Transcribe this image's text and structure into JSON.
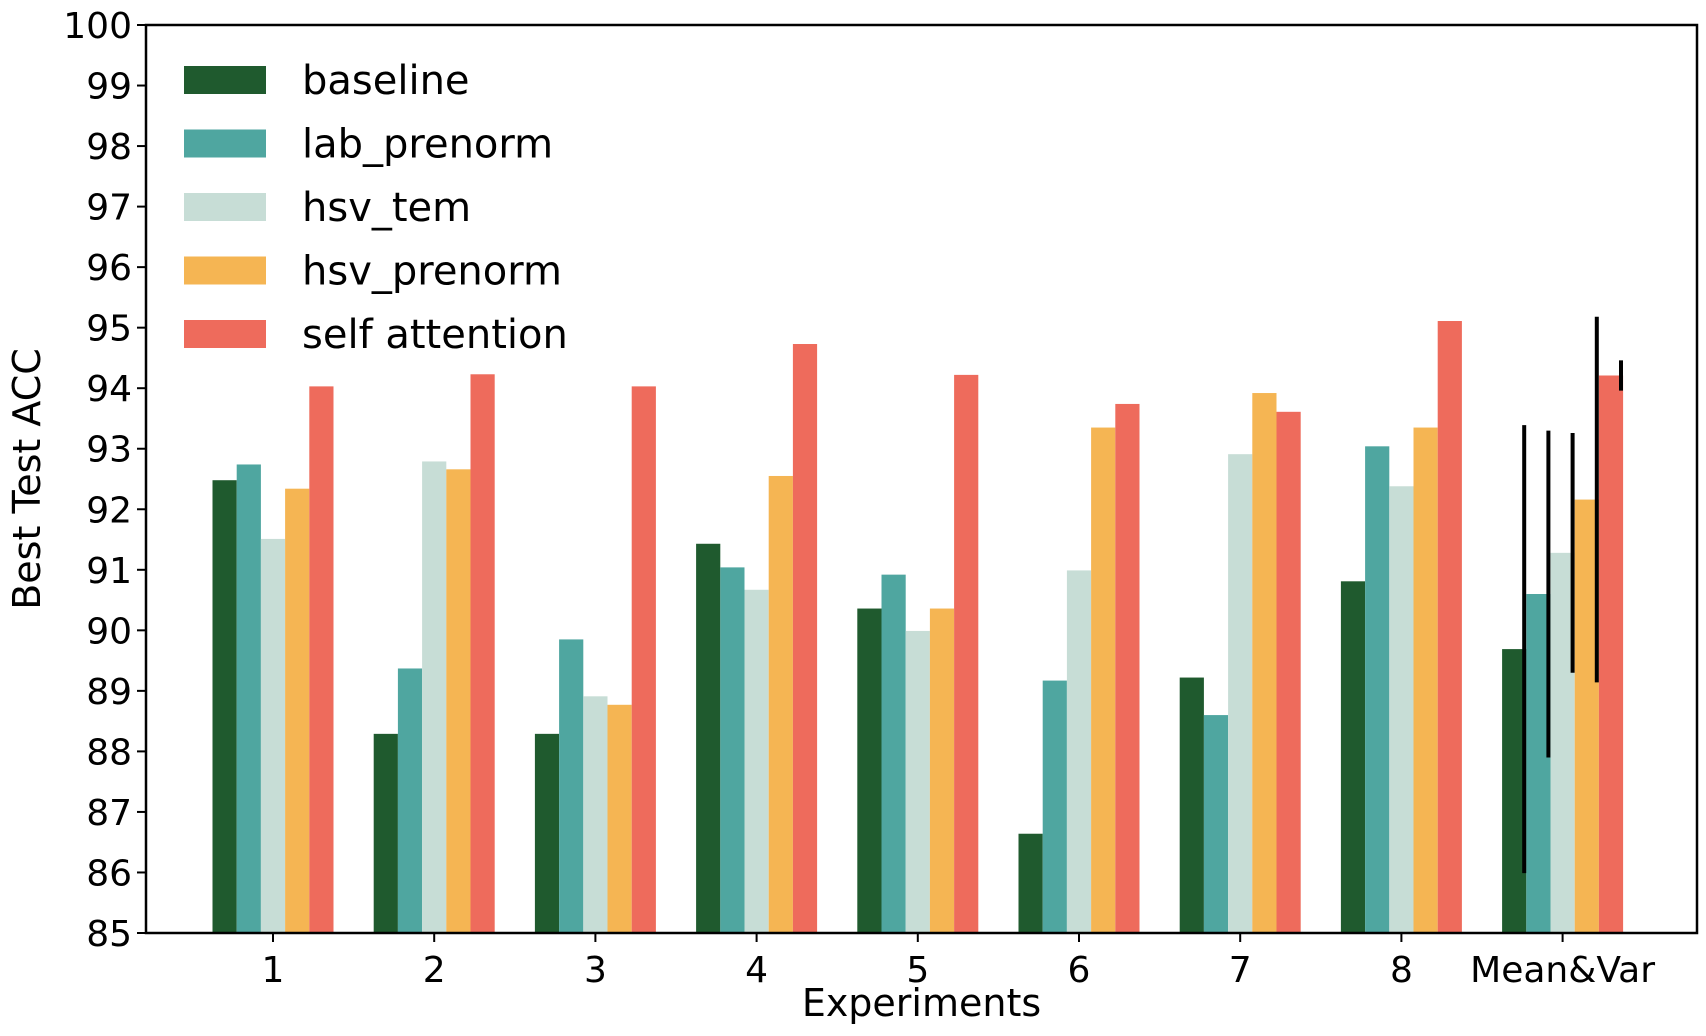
{
  "chart_data": {
    "type": "bar",
    "xlabel": "Experiments",
    "ylabel": "Best Test ACC",
    "ylim": [
      85,
      100
    ],
    "yticks": [
      85,
      86,
      87,
      88,
      89,
      90,
      91,
      92,
      93,
      94,
      95,
      96,
      97,
      98,
      99,
      100
    ],
    "categories": [
      "1",
      "2",
      "3",
      "4",
      "5",
      "6",
      "7",
      "8",
      "Mean&Var"
    ],
    "legend_position": "top-left",
    "grid": false,
    "series": [
      {
        "name": "baseline",
        "color": "#1f5a2e",
        "values": [
          92.48,
          88.29,
          88.29,
          91.43,
          90.36,
          86.64,
          89.22,
          90.81,
          89.69
        ],
        "error": [
          null,
          null,
          null,
          null,
          null,
          null,
          null,
          null,
          3.7
        ]
      },
      {
        "name": "lab_prenorm",
        "color": "#4fa6a0",
        "values": [
          92.74,
          89.37,
          89.85,
          91.04,
          90.92,
          89.17,
          88.6,
          93.04,
          90.6
        ],
        "error": [
          null,
          null,
          null,
          null,
          null,
          null,
          null,
          null,
          2.7
        ]
      },
      {
        "name": "hsv_tem",
        "color": "#c7ddd6",
        "values": [
          91.51,
          92.79,
          88.91,
          90.67,
          89.99,
          90.99,
          92.91,
          92.38,
          91.28
        ],
        "error": [
          null,
          null,
          null,
          null,
          null,
          null,
          null,
          null,
          1.98
        ]
      },
      {
        "name": "hsv_prenorm",
        "color": "#f5b553",
        "values": [
          92.34,
          92.66,
          88.77,
          92.55,
          90.36,
          93.35,
          93.92,
          93.35,
          92.16
        ],
        "error": [
          null,
          null,
          null,
          null,
          null,
          null,
          null,
          null,
          3.02
        ]
      },
      {
        "name": "self attention",
        "color": "#ee6b5c",
        "values": [
          94.03,
          94.23,
          94.03,
          94.73,
          94.22,
          93.74,
          93.61,
          95.11,
          94.21
        ],
        "error": [
          null,
          null,
          null,
          null,
          null,
          null,
          null,
          null,
          0.25
        ]
      }
    ]
  }
}
